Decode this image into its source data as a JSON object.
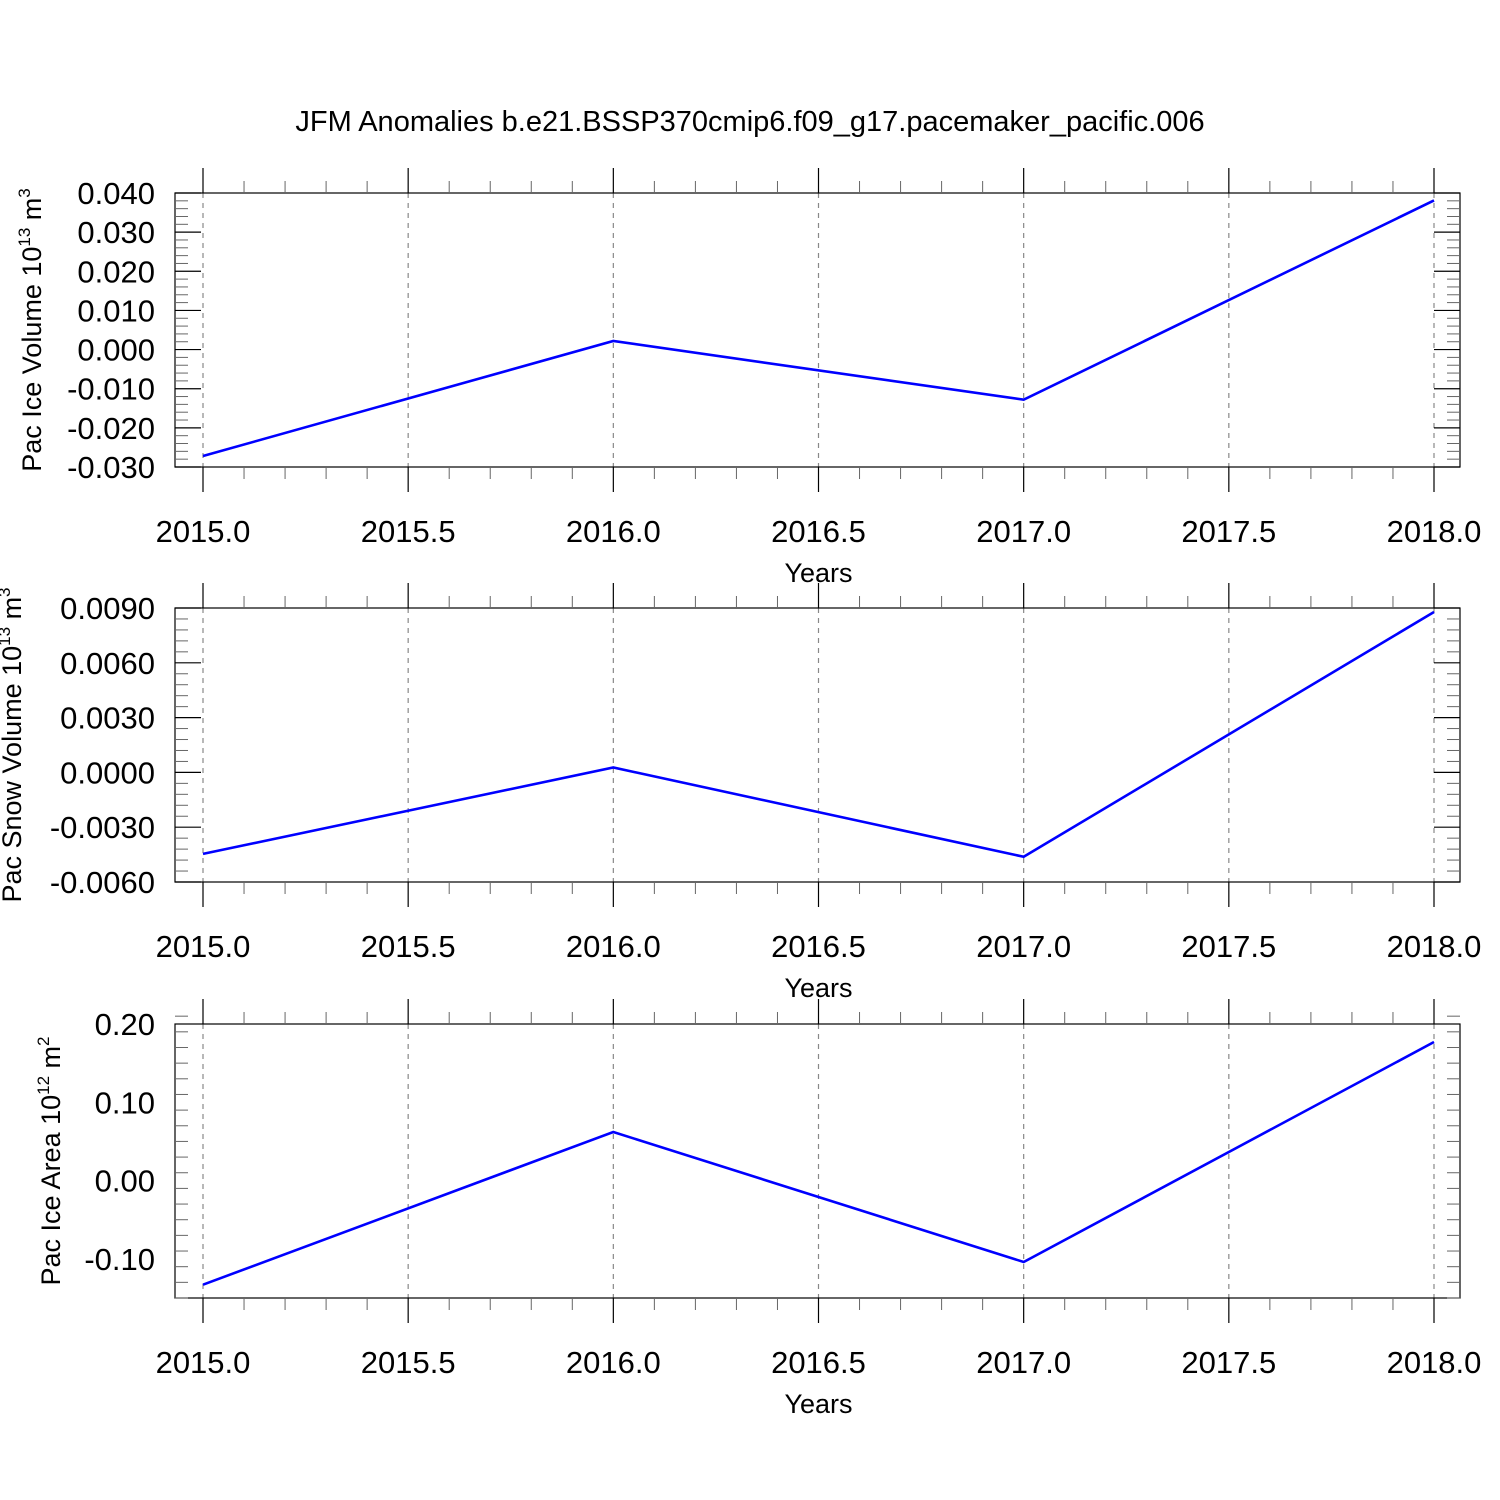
{
  "title": "JFM Anomalies b.e21.BSSP370cmip6.f09_g17.pacemaker_pacific.006",
  "colors": {
    "series": "#0000ff",
    "grid": "#888888",
    "axis": "#000000"
  },
  "chart_data": [
    {
      "type": "line",
      "name": "ice-volume",
      "x": [
        2015,
        2016,
        2017,
        2018
      ],
      "y": [
        -0.0272,
        0.0022,
        -0.0128,
        0.0381
      ],
      "xlabel": "Years",
      "ylabel": {
        "main": "Pac Ice Volume 10",
        "sup": "13",
        "unit": " m",
        "unit_sup": "3"
      },
      "xticks": [
        "2015.0",
        "2015.5",
        "2016.0",
        "2016.5",
        "2017.0",
        "2017.5",
        "2018.0"
      ],
      "yticks": [
        "-0.030",
        "-0.020",
        "-0.010",
        "0.000",
        "0.010",
        "0.020",
        "0.030",
        "0.040"
      ],
      "xlim": [
        2014.93,
        2018.07
      ],
      "ylim": [
        -0.03,
        0.04
      ],
      "grid": "x-dashed"
    },
    {
      "type": "line",
      "name": "snow-volume",
      "x": [
        2015,
        2016,
        2017,
        2018
      ],
      "y": [
        -0.00446,
        0.00027,
        -0.00462,
        0.00878
      ],
      "xlabel": "Years",
      "ylabel": {
        "main": "Pac Snow Volume 10",
        "sup": "13",
        "unit": " m",
        "unit_sup": "3"
      },
      "xticks": [
        "2015.0",
        "2015.5",
        "2016.0",
        "2016.5",
        "2017.0",
        "2017.5",
        "2018.0"
      ],
      "yticks": [
        "-0.0060",
        "-0.0030",
        "0.0000",
        "0.0030",
        "0.0060",
        "0.0090"
      ],
      "xlim": [
        2014.93,
        2018.07
      ],
      "ylim": [
        -0.006,
        0.009
      ],
      "grid": "x-dashed"
    },
    {
      "type": "line",
      "name": "ice-area",
      "x": [
        2015,
        2016,
        2017,
        2018
      ],
      "y": [
        -0.133,
        0.062,
        -0.104,
        0.177
      ],
      "xlabel": "Years",
      "ylabel": {
        "main": "Pac Ice Area 10",
        "sup": "12",
        "unit": " m",
        "unit_sup": "2"
      },
      "xticks": [
        "2015.0",
        "2015.5",
        "2016.0",
        "2016.5",
        "2017.0",
        "2017.5",
        "2018.0"
      ],
      "yticks": [
        "-0.10",
        "0.00",
        "0.10",
        "0.20"
      ],
      "xlim": [
        2014.93,
        2018.07
      ],
      "ylim": [
        -0.15,
        0.2
      ],
      "grid": "x-dashed"
    }
  ]
}
